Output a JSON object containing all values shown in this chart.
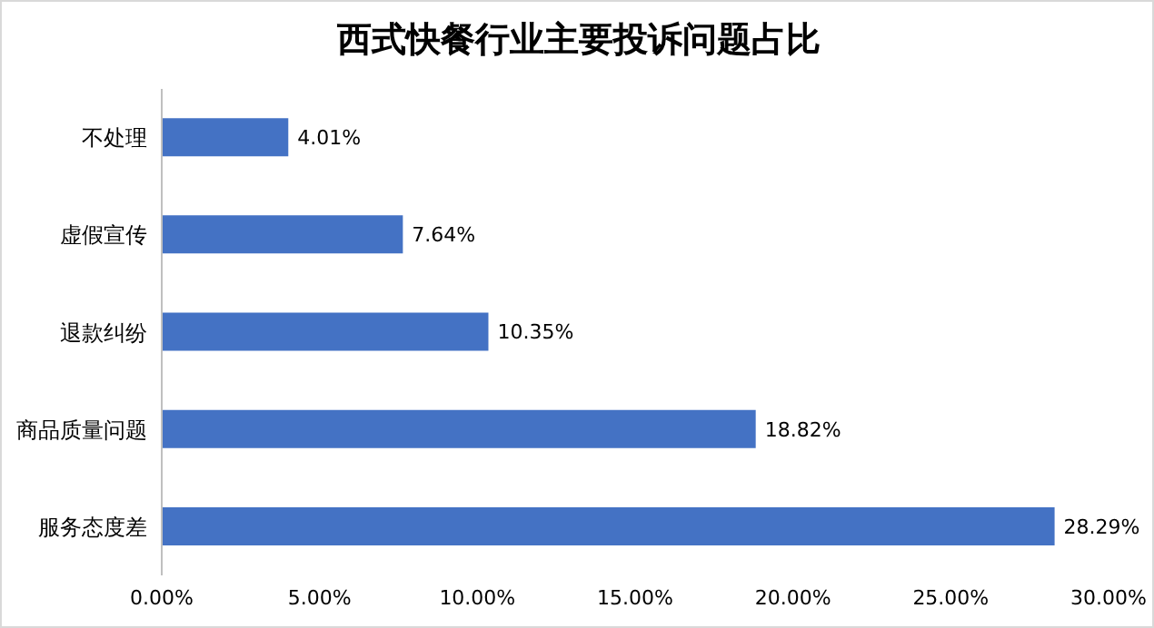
{
  "chart_data": {
    "type": "bar",
    "orientation": "horizontal",
    "title": "西式快餐行业主要投诉问题占比",
    "categories": [
      "不处理",
      "虚假宣传",
      "退款纠纷",
      "商品质量问题",
      "服务态度差"
    ],
    "values": [
      4.01,
      7.64,
      10.35,
      18.82,
      28.29
    ],
    "value_labels": [
      "4.01%",
      "7.64%",
      "10.35%",
      "18.82%",
      "28.29%"
    ],
    "color": "#4472c4",
    "xlim": [
      0,
      30
    ],
    "xticks": [
      {
        "value": 0,
        "label": "0.00%"
      },
      {
        "value": 5,
        "label": "5.00%"
      },
      {
        "value": 10,
        "label": "10.00%"
      },
      {
        "value": 15,
        "label": "15.00%"
      },
      {
        "value": 20,
        "label": "20.00%"
      },
      {
        "value": 25,
        "label": "25.00%"
      },
      {
        "value": 30,
        "label": "30.00%"
      }
    ],
    "grid": false,
    "legend": false
  }
}
